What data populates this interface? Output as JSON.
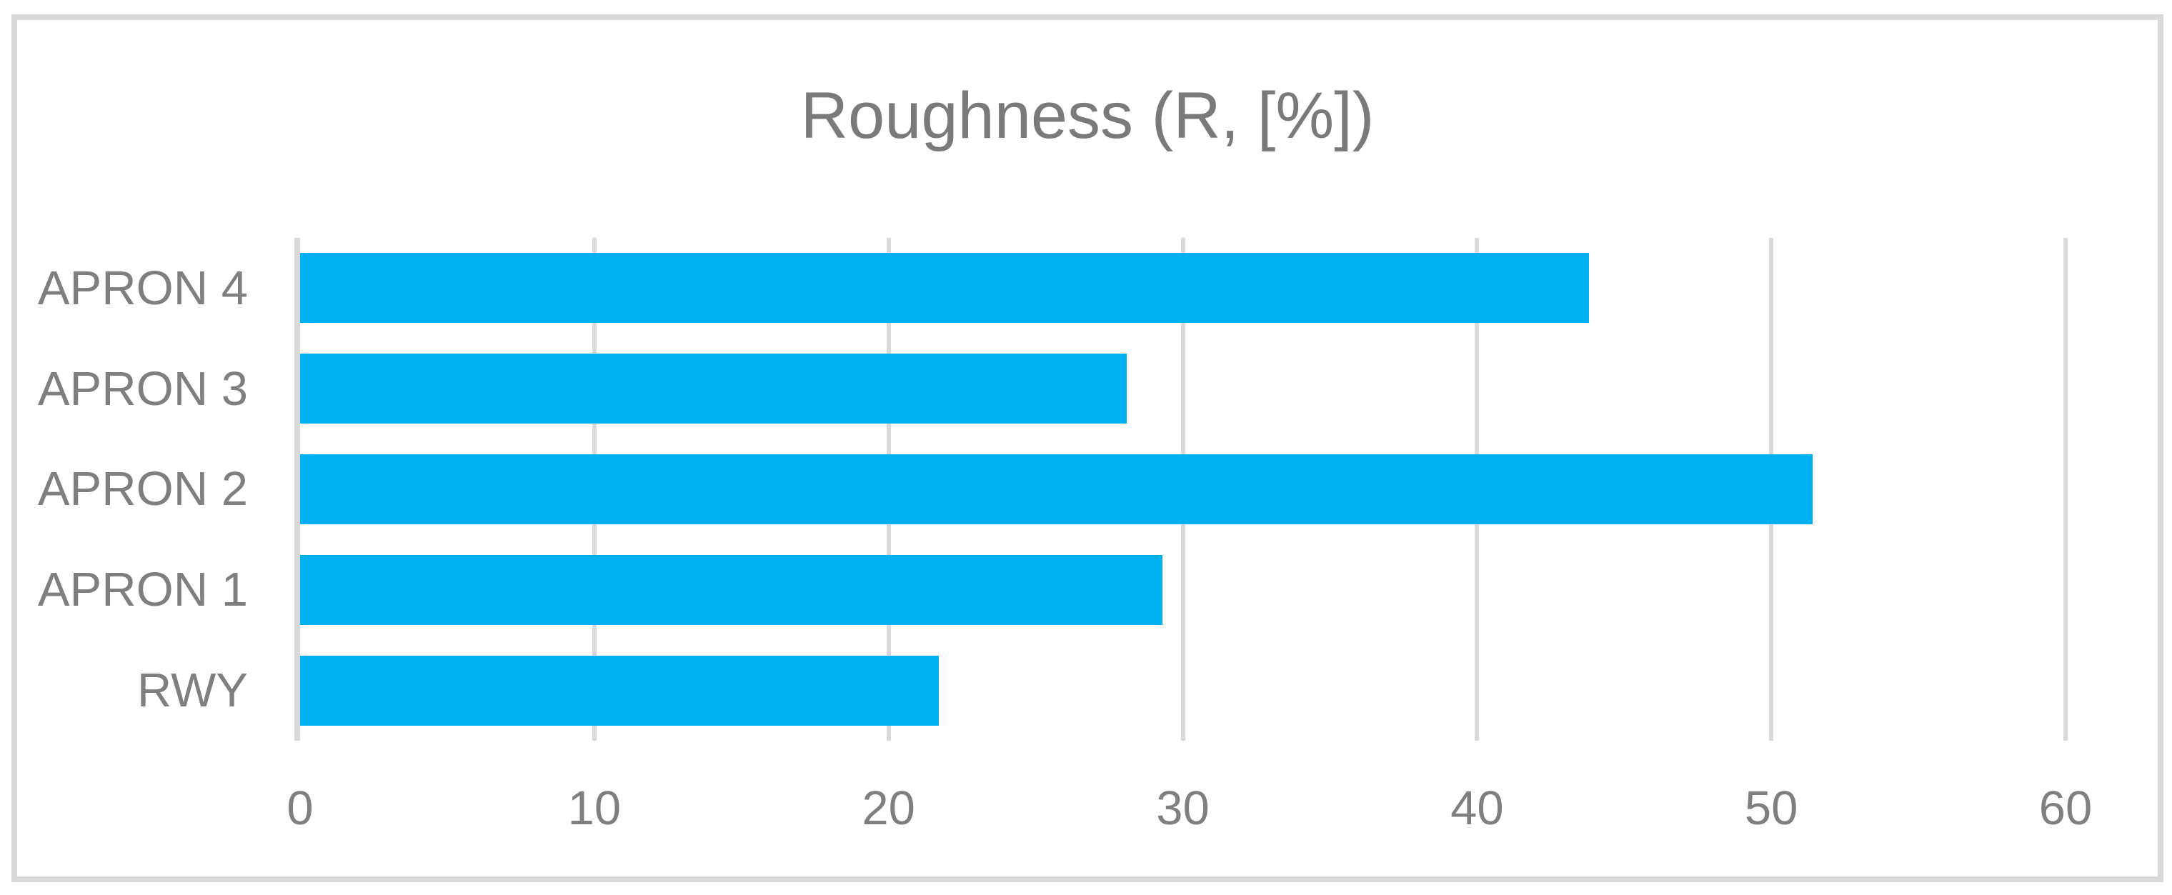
{
  "chart_data": {
    "type": "bar",
    "orientation": "horizontal",
    "title": "Roughness (R, [%])",
    "categories": [
      "APRON 4",
      "APRON 3",
      "APRON 2",
      "APRON 1",
      "RWY"
    ],
    "values": [
      43.8,
      28.1,
      51.4,
      29.3,
      21.7
    ],
    "xlabel": "",
    "ylabel": "",
    "xlim": [
      0,
      60
    ],
    "xticks": [
      0,
      10,
      20,
      30,
      40,
      50,
      60
    ],
    "grid": "vertical-only",
    "legend": "none",
    "colors": {
      "bar": "#00B0F0",
      "title_text": "#7A7A7A",
      "label_text": "#7F7F7F",
      "gridline": "#D9D9D9",
      "axis_line": "#D9D9D9",
      "frame_border": "#D9D9D9",
      "background": "#FFFFFF"
    }
  }
}
